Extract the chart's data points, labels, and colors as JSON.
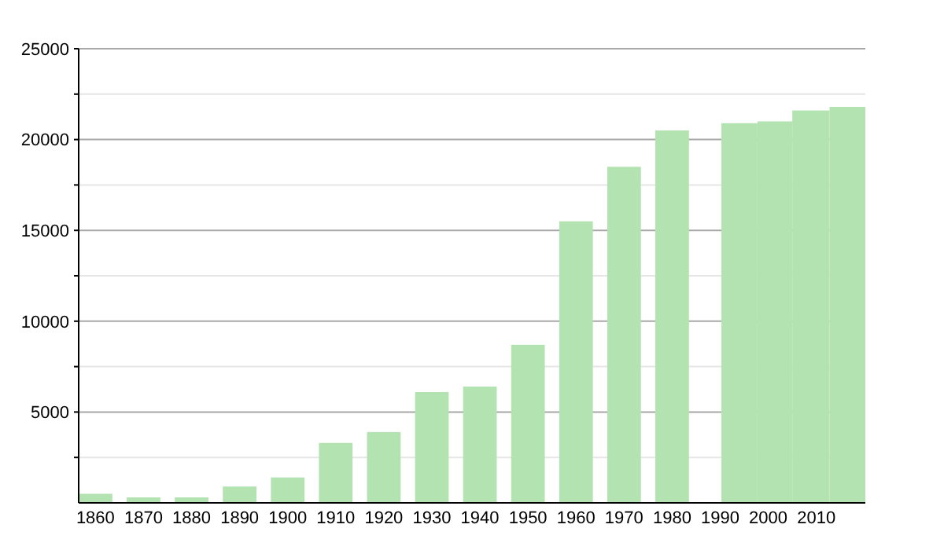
{
  "chart_data": {
    "type": "bar",
    "x": [
      1860,
      1870,
      1880,
      1890,
      1900,
      1910,
      1920,
      1930,
      1940,
      1950,
      1960,
      1970,
      1980,
      1994,
      2001.5,
      2008.5,
      2017
    ],
    "values": [
      500,
      300,
      300,
      900,
      1400,
      3300,
      3900,
      6100,
      6400,
      8700,
      15500,
      18500,
      20500,
      20900,
      21000,
      21600,
      21800
    ],
    "color": "#b3e3b0",
    "xlim": [
      1856.5,
      2020.2
    ],
    "xticks": [
      1860,
      1870,
      1880,
      1890,
      1900,
      1910,
      1920,
      1930,
      1940,
      1950,
      1960,
      1970,
      1980,
      1990,
      2000,
      2010
    ],
    "ylim": [
      0,
      25000
    ],
    "yticks": [
      {
        "value": 2500,
        "label": null
      },
      5000,
      {
        "value": 7500,
        "label": null
      },
      10000,
      {
        "value": 12500,
        "label": null
      },
      15000,
      {
        "value": 17500,
        "label": null
      },
      20000,
      {
        "value": 22500,
        "label": null
      },
      25000
    ],
    "grid": "y"
  }
}
